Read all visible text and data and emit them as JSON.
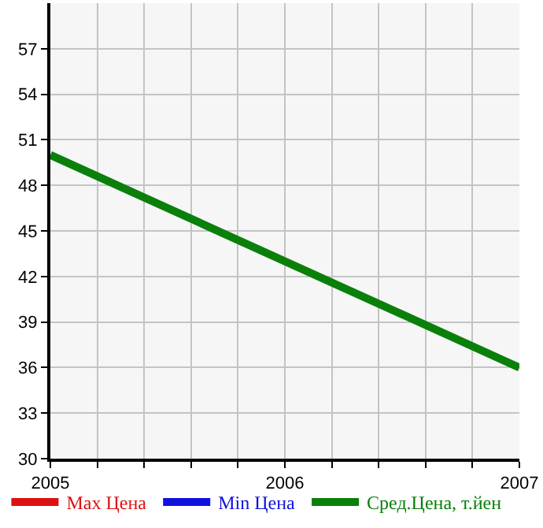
{
  "chart_data": {
    "type": "line",
    "x": [
      2005,
      2007
    ],
    "series": [
      {
        "name": "Max Цена",
        "color": "#dd1111",
        "values": [
          null,
          null
        ]
      },
      {
        "name": "Min Цена",
        "color": "#1111dd",
        "values": [
          null,
          null
        ]
      },
      {
        "name": "Сред.Цена, т.йен",
        "color": "#0a800a",
        "values": [
          50,
          36
        ]
      }
    ],
    "xlim": [
      2005,
      2007
    ],
    "xticks": [
      2005,
      {
        "value": 2005.2,
        "label": null
      },
      {
        "value": 2005.4,
        "label": null
      },
      {
        "value": 2005.6,
        "label": null
      },
      {
        "value": 2005.8,
        "label": null
      },
      2006,
      {
        "value": 2006.2,
        "label": null
      },
      {
        "value": 2006.4,
        "label": null
      },
      {
        "value": 2006.6,
        "label": null
      },
      {
        "value": 2006.8,
        "label": null
      },
      2007
    ],
    "ylim": [
      30,
      60
    ],
    "yticks": [
      30,
      33,
      36,
      39,
      42,
      45,
      48,
      51,
      54,
      57
    ],
    "grid": true,
    "legend": "bottom",
    "marker": "none",
    "line_style": "solid"
  }
}
